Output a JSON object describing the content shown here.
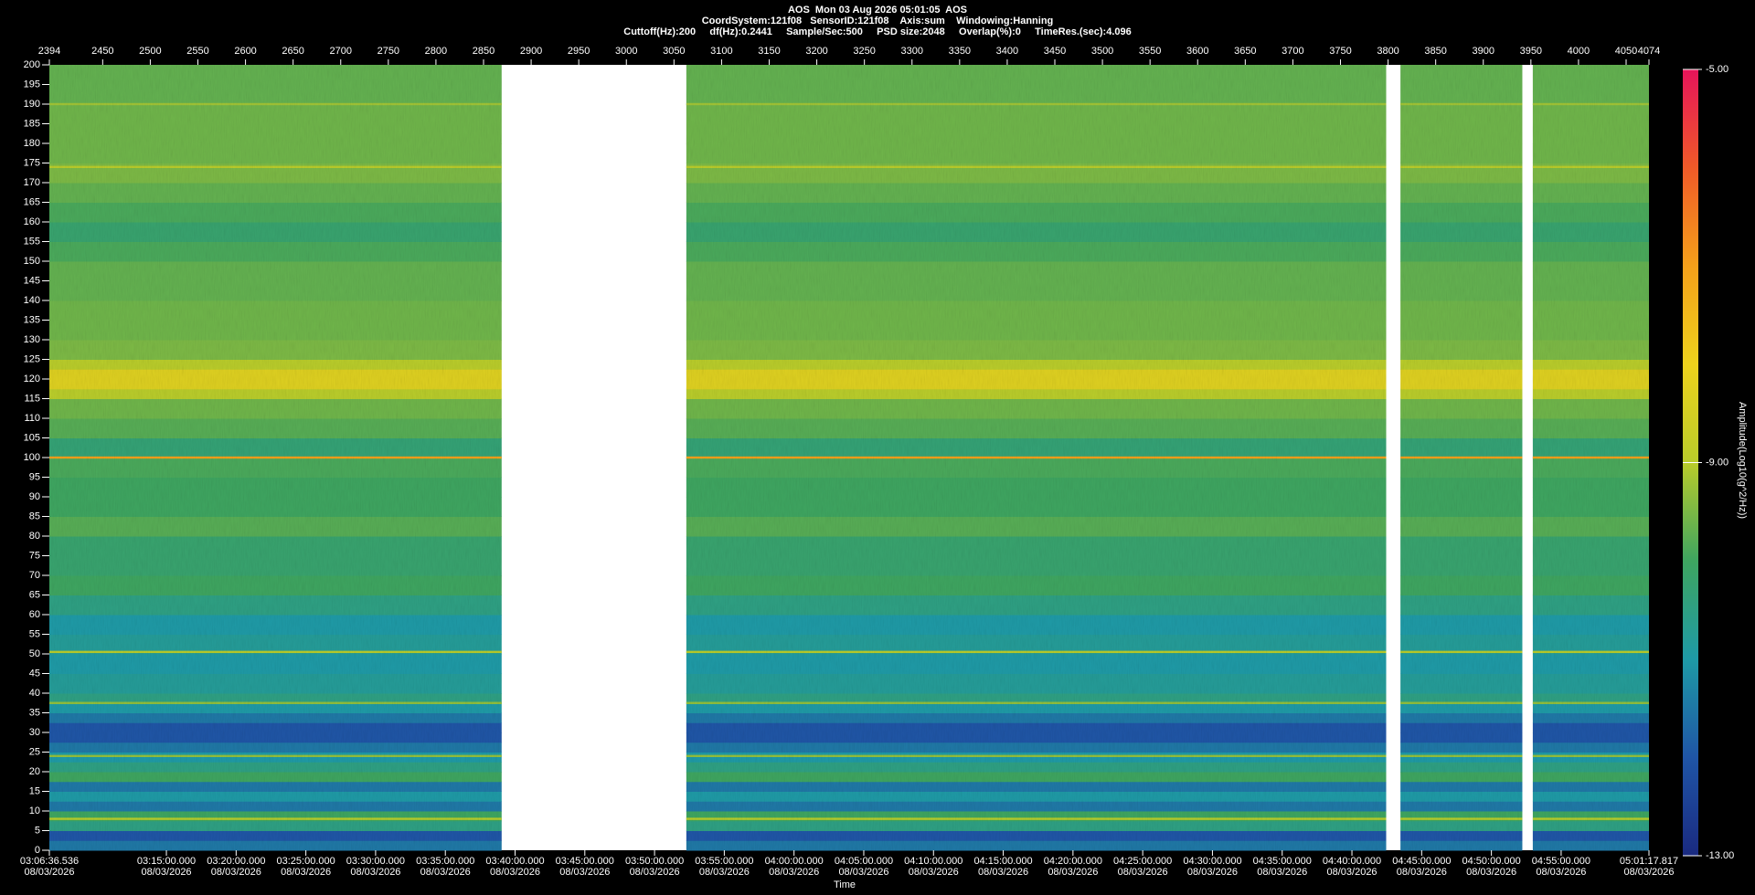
{
  "chart_data": {
    "type": "spectrogram",
    "title": "AOS  Mon 03 Aug 2026 05:01:05  AOS",
    "subtitle": "CoordSystem:121f08   SensorID:121f08    Axis:sum    Windowing:Hanning",
    "subtitle2": "Cuttoff(Hz):200     df(Hz):0.2441     Sample/Sec:500     PSD size:2048     Overlap(%):0     TimeRes.(sec):4.096",
    "x2label": "Time",
    "colorbar_label": "Amplitude(Log10(g^2/Hz))",
    "xlim": [
      2394,
      4074
    ],
    "xticks": [
      2394,
      2450,
      2500,
      2550,
      2600,
      2650,
      2700,
      2750,
      2800,
      2850,
      2900,
      2950,
      3000,
      3050,
      3100,
      3150,
      3200,
      3250,
      3300,
      3350,
      3400,
      3450,
      3500,
      3550,
      3600,
      3650,
      3700,
      3750,
      3800,
      3850,
      3900,
      3950,
      4000,
      4050,
      4074
    ],
    "x2lim": [
      11196.536,
      18077.817
    ],
    "x2ticks": [
      {
        "value": 11196.536,
        "label": "03:06:36.536",
        "date": "08/03/2026"
      },
      {
        "value": 11700,
        "label": "03:15:00.000",
        "date": "08/03/2026"
      },
      {
        "value": 12000,
        "label": "03:20:00.000",
        "date": "08/03/2026"
      },
      {
        "value": 12300,
        "label": "03:25:00.000",
        "date": "08/03/2026"
      },
      {
        "value": 12600,
        "label": "03:30:00.000",
        "date": "08/03/2026"
      },
      {
        "value": 12900,
        "label": "03:35:00.000",
        "date": "08/03/2026"
      },
      {
        "value": 13200,
        "label": "03:40:00.000",
        "date": "08/03/2026"
      },
      {
        "value": 13500,
        "label": "03:45:00.000",
        "date": "08/03/2026"
      },
      {
        "value": 13800,
        "label": "03:50:00.000",
        "date": "08/03/2026"
      },
      {
        "value": 14100,
        "label": "03:55:00.000",
        "date": "08/03/2026"
      },
      {
        "value": 14400,
        "label": "04:00:00.000",
        "date": "08/03/2026"
      },
      {
        "value": 14700,
        "label": "04:05:00.000",
        "date": "08/03/2026"
      },
      {
        "value": 15000,
        "label": "04:10:00.000",
        "date": "08/03/2026"
      },
      {
        "value": 15300,
        "label": "04:15:00.000",
        "date": "08/03/2026"
      },
      {
        "value": 15600,
        "label": "04:20:00.000",
        "date": "08/03/2026"
      },
      {
        "value": 15900,
        "label": "04:25:00.000",
        "date": "08/03/2026"
      },
      {
        "value": 16200,
        "label": "04:30:00.000",
        "date": "08/03/2026"
      },
      {
        "value": 16500,
        "label": "04:35:00.000",
        "date": "08/03/2026"
      },
      {
        "value": 16800,
        "label": "04:40:00.000",
        "date": "08/03/2026"
      },
      {
        "value": 17100,
        "label": "04:45:00.000",
        "date": "08/03/2026"
      },
      {
        "value": 17400,
        "label": "04:50:00.000",
        "date": "08/03/2026"
      },
      {
        "value": 17700,
        "label": "04:55:00.000",
        "date": "08/03/2026"
      },
      {
        "value": 18077.817,
        "label": "05:01:17.817",
        "date": "08/03/2026"
      }
    ],
    "ylim": [
      0,
      200
    ],
    "yticks": [
      0,
      5,
      10,
      15,
      20,
      25,
      30,
      35,
      40,
      45,
      50,
      55,
      60,
      65,
      70,
      75,
      80,
      85,
      90,
      95,
      100,
      105,
      110,
      115,
      120,
      125,
      130,
      135,
      140,
      145,
      150,
      155,
      160,
      165,
      170,
      175,
      180,
      185,
      190,
      195,
      200
    ],
    "clim": [
      -13,
      -5
    ],
    "cticks": [
      {
        "value": -5,
        "label": "-5.00"
      },
      {
        "value": -9,
        "label": "-9.00"
      },
      {
        "value": -13,
        "label": "-13.00"
      }
    ],
    "colormap": [
      "#1a2a80",
      "#1f55a6",
      "#1e9aa6",
      "#3ea560",
      "#b9cc2a",
      "#eed21c",
      "#f5a01a",
      "#f05a28",
      "#e6145a"
    ],
    "segments": [
      [
        2394,
        2869
      ],
      [
        3063,
        3798
      ],
      [
        3813,
        3941
      ],
      [
        3952,
        4074
      ]
    ],
    "bins": [
      0,
      2.5,
      5,
      7.5,
      10,
      12.5,
      15,
      17.5,
      20,
      22.5,
      25,
      27.5,
      30,
      32.5,
      35,
      37.5,
      40,
      45,
      50,
      55,
      60,
      65,
      70,
      80,
      85,
      90,
      95,
      100,
      105,
      110,
      115,
      117.5,
      122.5,
      125,
      130,
      140,
      150,
      155,
      160,
      165,
      170,
      175,
      180,
      190,
      200
    ],
    "amplitude": [
      -11.5,
      -12,
      -10.5,
      -10,
      -11.5,
      -11,
      -11.5,
      -10,
      -10.5,
      -11,
      -11.5,
      -12,
      -12,
      -11.5,
      -11,
      -10.5,
      -10.8,
      -11,
      -10.8,
      -11,
      -10.5,
      -10,
      -10.2,
      -9.8,
      -10,
      -10,
      -9.9,
      -10.3,
      -9.8,
      -9.6,
      -9,
      -8.3,
      -9,
      -9.5,
      -9.6,
      -9.7,
      -9.9,
      -10.2,
      -9.9,
      -9.7,
      -9.5,
      -9.6,
      -9.6,
      -9.7
    ],
    "lines": {
      "freq": [
        8,
        24,
        37.5,
        50.5,
        100,
        174,
        190
      ],
      "amplitude": [
        -9,
        -9.3,
        -9.3,
        -9,
        -7,
        -9,
        -9.2
      ]
    }
  }
}
